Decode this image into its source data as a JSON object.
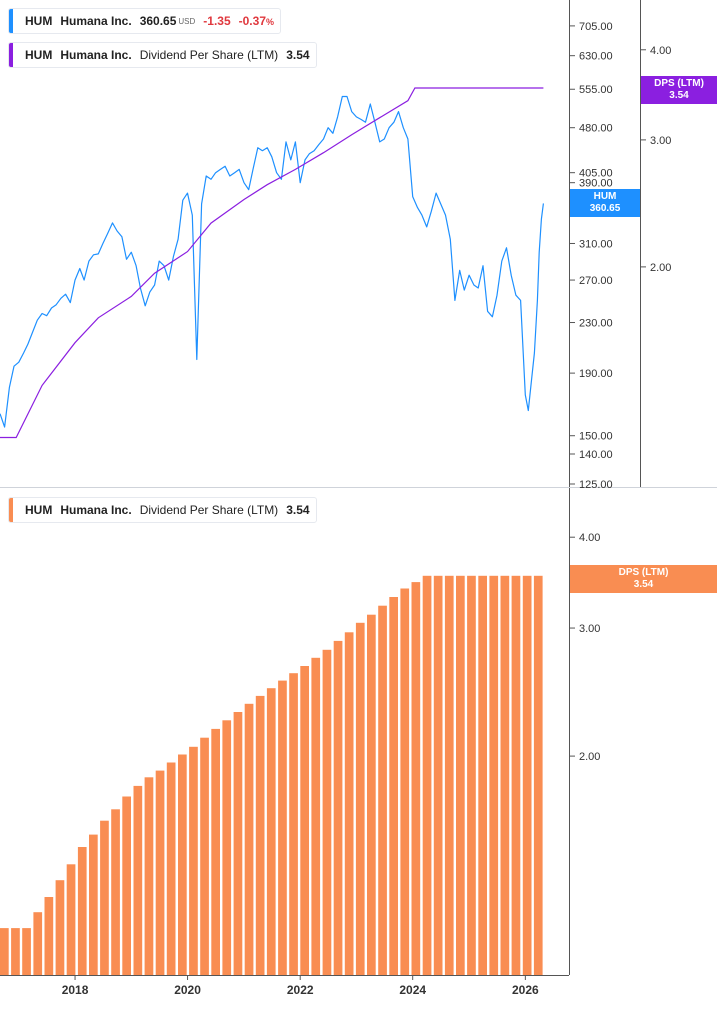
{
  "chart_data": [
    {
      "type": "line",
      "ticker": "HUM",
      "company": "Humana Inc.",
      "price": "360.65",
      "currency": "USD",
      "change": "-1.35",
      "change_pct": "-0.37",
      "pct_sign": "%",
      "price_color": "#1e90ff",
      "series": [
        {
          "name": "HUM Humana Inc.",
          "color": "#1e90ff",
          "points": [
            [
              "2016-09-01",
              163
            ],
            [
              "2016-10-01",
              155
            ],
            [
              "2016-11-01",
              180
            ],
            [
              "2016-12-01",
              195
            ],
            [
              "2017-01-01",
              198
            ],
            [
              "2017-02-01",
              205
            ],
            [
              "2017-03-01",
              212
            ],
            [
              "2017-04-01",
              222
            ],
            [
              "2017-05-01",
              232
            ],
            [
              "2017-06-01",
              238
            ],
            [
              "2017-07-01",
              236
            ],
            [
              "2017-08-01",
              243
            ],
            [
              "2017-09-01",
              246
            ],
            [
              "2017-10-01",
              252
            ],
            [
              "2017-11-01",
              256
            ],
            [
              "2017-12-01",
              248
            ],
            [
              "2018-01-01",
              270
            ],
            [
              "2018-02-01",
              282
            ],
            [
              "2018-03-01",
              270
            ],
            [
              "2018-04-01",
              290
            ],
            [
              "2018-05-01",
              297
            ],
            [
              "2018-06-01",
              298
            ],
            [
              "2018-07-01",
              310
            ],
            [
              "2018-08-01",
              322
            ],
            [
              "2018-09-01",
              335
            ],
            [
              "2018-10-01",
              325
            ],
            [
              "2018-11-01",
              318
            ],
            [
              "2018-12-01",
              292
            ],
            [
              "2019-01-01",
              300
            ],
            [
              "2019-02-01",
              285
            ],
            [
              "2019-03-01",
              262
            ],
            [
              "2019-04-01",
              245
            ],
            [
              "2019-05-01",
              258
            ],
            [
              "2019-06-01",
              265
            ],
            [
              "2019-07-01",
              290
            ],
            [
              "2019-08-01",
              285
            ],
            [
              "2019-09-01",
              270
            ],
            [
              "2019-10-01",
              295
            ],
            [
              "2019-11-01",
              315
            ],
            [
              "2019-12-01",
              365
            ],
            [
              "2020-01-01",
              375
            ],
            [
              "2020-02-01",
              345
            ],
            [
              "2020-03-01",
              200
            ],
            [
              "2020-04-01",
              360
            ],
            [
              "2020-05-01",
              400
            ],
            [
              "2020-06-01",
              395
            ],
            [
              "2020-07-01",
              405
            ],
            [
              "2020-08-01",
              410
            ],
            [
              "2020-09-01",
              415
            ],
            [
              "2020-10-01",
              400
            ],
            [
              "2020-11-01",
              405
            ],
            [
              "2020-12-01",
              410
            ],
            [
              "2021-01-01",
              390
            ],
            [
              "2021-02-01",
              380
            ],
            [
              "2021-03-01",
              410
            ],
            [
              "2021-04-01",
              445
            ],
            [
              "2021-05-01",
              440
            ],
            [
              "2021-06-01",
              445
            ],
            [
              "2021-07-01",
              430
            ],
            [
              "2021-08-01",
              405
            ],
            [
              "2021-09-01",
              395
            ],
            [
              "2021-10-01",
              455
            ],
            [
              "2021-11-01",
              425
            ],
            [
              "2021-12-01",
              455
            ],
            [
              "2022-01-01",
              390
            ],
            [
              "2022-02-01",
              425
            ],
            [
              "2022-03-01",
              435
            ],
            [
              "2022-04-01",
              440
            ],
            [
              "2022-05-01",
              450
            ],
            [
              "2022-06-01",
              460
            ],
            [
              "2022-07-01",
              480
            ],
            [
              "2022-08-01",
              470
            ],
            [
              "2022-09-01",
              500
            ],
            [
              "2022-10-01",
              540
            ],
            [
              "2022-11-01",
              540
            ],
            [
              "2022-12-01",
              510
            ],
            [
              "2023-01-01",
              500
            ],
            [
              "2023-02-01",
              495
            ],
            [
              "2023-03-01",
              490
            ],
            [
              "2023-04-01",
              525
            ],
            [
              "2023-05-01",
              490
            ],
            [
              "2023-06-01",
              455
            ],
            [
              "2023-07-01",
              460
            ],
            [
              "2023-08-01",
              480
            ],
            [
              "2023-09-01",
              490
            ],
            [
              "2023-10-01",
              510
            ],
            [
              "2023-11-01",
              480
            ],
            [
              "2023-12-01",
              460
            ],
            [
              "2024-01-01",
              370
            ],
            [
              "2024-02-01",
              355
            ],
            [
              "2024-03-01",
              345
            ],
            [
              "2024-04-01",
              330
            ],
            [
              "2024-05-01",
              350
            ],
            [
              "2024-06-01",
              375
            ],
            [
              "2024-07-01",
              360
            ],
            [
              "2024-08-01",
              345
            ],
            [
              "2024-09-01",
              315
            ],
            [
              "2024-10-01",
              250
            ],
            [
              "2024-11-01",
              280
            ],
            [
              "2024-12-01",
              260
            ],
            [
              "2025-01-01",
              275
            ],
            [
              "2025-02-01",
              265
            ],
            [
              "2025-03-01",
              262
            ],
            [
              "2025-04-01",
              285
            ],
            [
              "2025-05-01",
              240
            ],
            [
              "2025-06-01",
              235
            ],
            [
              "2025-07-01",
              255
            ],
            [
              "2025-08-01",
              290
            ],
            [
              "2025-09-01",
              305
            ],
            [
              "2025-10-01",
              275
            ],
            [
              "2025-11-01",
              255
            ],
            [
              "2025-12-01",
              250
            ],
            [
              "2026-01-01",
              175
            ],
            [
              "2026-01-20",
              165
            ],
            [
              "2026-02-10",
              185
            ],
            [
              "2026-03-01",
              205
            ],
            [
              "2026-03-20",
              250
            ],
            [
              "2026-04-01",
              300
            ],
            [
              "2026-04-15",
              340
            ],
            [
              "2026-04-28",
              360.65
            ]
          ]
        },
        {
          "name": "HUM Humana Inc. Dividend Per Share (LTM)",
          "color": "#8b1fe0",
          "axis": "right",
          "points": [
            [
              "2016-09-01",
              1.16
            ],
            [
              "2016-12-15",
              1.16
            ],
            [
              "2017-06-01",
              1.37
            ],
            [
              "2018-01-01",
              1.57
            ],
            [
              "2018-06-01",
              1.7
            ],
            [
              "2019-01-01",
              1.82
            ],
            [
              "2019-06-01",
              1.96
            ],
            [
              "2020-01-01",
              2.1
            ],
            [
              "2020-06-01",
              2.3
            ],
            [
              "2021-01-01",
              2.48
            ],
            [
              "2021-06-01",
              2.6
            ],
            [
              "2021-12-01",
              2.73
            ],
            [
              "2022-06-01",
              2.88
            ],
            [
              "2022-12-01",
              3.05
            ],
            [
              "2023-06-01",
              3.22
            ],
            [
              "2023-12-01",
              3.4
            ],
            [
              "2024-01-15",
              3.54
            ],
            [
              "2026-04-28",
              3.54
            ]
          ]
        }
      ],
      "left_ticks": [
        "705.00",
        "630.00",
        "555.00",
        "480.00",
        "405.00",
        "390.00",
        "310.00",
        "270.00",
        "230.00",
        "190.00",
        "150.00",
        "140.00",
        "125.00"
      ],
      "right_ticks": [
        "4.00",
        "3.00",
        "2.00"
      ],
      "price_tag": {
        "label": "HUM",
        "value": "360.65",
        "color": "#1e90ff"
      },
      "dps_tag": {
        "label": "DPS (LTM)",
        "value": "3.54",
        "color": "#8b1fe0"
      },
      "ylim": [
        125,
        760
      ],
      "ylim_right": [
        1.0,
        4.6
      ],
      "log_scale": true,
      "grid": false
    },
    {
      "type": "bar",
      "ticker": "HUM",
      "company": "Humana Inc.",
      "metric": "Dividend Per Share (LTM)",
      "last_value": "3.54",
      "color": "#f98d52",
      "right_ticks": [
        "4.00",
        "3.00",
        "2.00"
      ],
      "dps_tag": {
        "label": "DPS (LTM)",
        "value": "3.54",
        "color": "#f98d52"
      },
      "x_ticks": [
        "2018",
        "2020",
        "2022",
        "2024",
        "2026"
      ],
      "ylim": [
        1.0,
        4.5
      ],
      "log_scale": true,
      "grid": false,
      "values": [
        1.16,
        1.16,
        1.16,
        1.22,
        1.28,
        1.35,
        1.42,
        1.5,
        1.56,
        1.63,
        1.69,
        1.76,
        1.82,
        1.87,
        1.91,
        1.96,
        2.01,
        2.06,
        2.12,
        2.18,
        2.24,
        2.3,
        2.36,
        2.42,
        2.48,
        2.54,
        2.6,
        2.66,
        2.73,
        2.8,
        2.88,
        2.96,
        3.05,
        3.13,
        3.22,
        3.31,
        3.4,
        3.47,
        3.54,
        3.54,
        3.54,
        3.54,
        3.54,
        3.54,
        3.54,
        3.54,
        3.54,
        3.54,
        3.54
      ]
    }
  ]
}
